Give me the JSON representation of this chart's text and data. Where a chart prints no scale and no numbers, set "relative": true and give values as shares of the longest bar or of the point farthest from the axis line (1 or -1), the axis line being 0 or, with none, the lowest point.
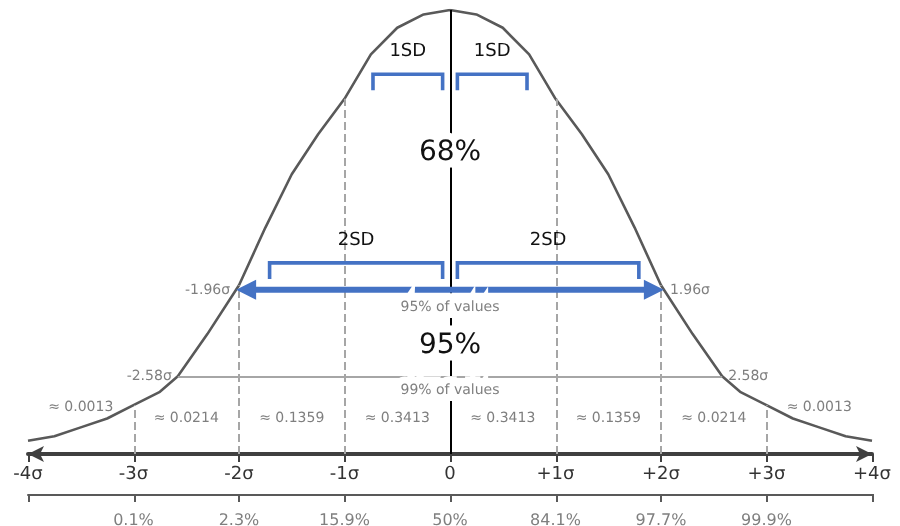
{
  "chart_data": {
    "type": "line",
    "relative": true,
    "series": [
      {
        "color": "#595959",
        "x": [
          -4,
          -3.75,
          -3.5,
          -3.25,
          -3,
          -2.75,
          -2.58,
          -2.3,
          -2,
          -1.75,
          -1.5,
          -1.25,
          -1,
          -0.75,
          -0.5,
          -0.25,
          0,
          0.25,
          0.5,
          0.75,
          1,
          1.25,
          1.5,
          1.75,
          2,
          2.3,
          2.58,
          2.75,
          3,
          3.25,
          3.5,
          3.75,
          4
        ],
        "values": [
          0.03,
          0.04,
          0.06,
          0.08,
          0.11,
          0.14,
          0.175,
          0.27,
          0.38,
          0.51,
          0.63,
          0.72,
          0.8,
          0.9,
          0.96,
          0.99,
          1,
          0.99,
          0.96,
          0.9,
          0.8,
          0.72,
          0.63,
          0.51,
          0.38,
          0.27,
          0.175,
          0.14,
          0.11,
          0.08,
          0.06,
          0.04,
          0.03
        ]
      }
    ],
    "xlim": [
      -4,
      4
    ],
    "xticks": [
      {
        "value": -4,
        "label": "-4σ"
      },
      {
        "value": -3,
        "label": "-3σ"
      },
      {
        "value": -2,
        "label": "-2σ"
      },
      {
        "value": -1,
        "label": "-1σ"
      },
      0,
      {
        "value": 1,
        "label": "+1σ"
      },
      {
        "value": 2,
        "label": "+2σ"
      },
      {
        "value": 3,
        "label": "+3σ"
      },
      {
        "value": 4,
        "label": "+4σ"
      }
    ],
    "marker": "none",
    "line_style": "solid",
    "grid": false,
    "ref_lines": [
      {
        "axis": "x",
        "value": -3,
        "color": "#a6a6a6",
        "line_style": "dashed"
      },
      {
        "axis": "x",
        "value": -2,
        "color": "#a6a6a6",
        "line_style": "dashed"
      },
      {
        "axis": "x",
        "value": -1,
        "color": "#a6a6a6",
        "line_style": "dashed"
      },
      {
        "axis": "x",
        "value": 0,
        "color": "#000000",
        "line_style": "solid"
      },
      {
        "axis": "x",
        "value": 1,
        "color": "#a6a6a6",
        "line_style": "dashed"
      },
      {
        "axis": "x",
        "value": 2,
        "color": "#a6a6a6",
        "line_style": "dashed"
      },
      {
        "axis": "x",
        "value": 3,
        "color": "#a6a6a6",
        "line_style": "dashed"
      },
      {
        "axis": "y",
        "value": 0.175,
        "color": "#a6a6a6",
        "line_style": "solid"
      }
    ],
    "annotations": [
      "1SD",
      "1SD",
      "68%",
      "2SD",
      "2SD",
      "-1.96σ",
      "1.96σ",
      "95% of values",
      "95%",
      "-2.58σ",
      "2.58σ",
      "99% of values",
      "≈ 0.0013",
      "≈ 0.0214",
      "≈ 0.1359",
      "≈ 0.3413",
      "≈ 0.3413",
      "≈ 0.1359",
      "≈ 0.0214",
      "≈ 0.0013",
      "0.1%",
      "2.3%",
      "15.9%",
      "50%",
      "84.1%",
      "97.7%",
      "99.9%"
    ]
  }
}
